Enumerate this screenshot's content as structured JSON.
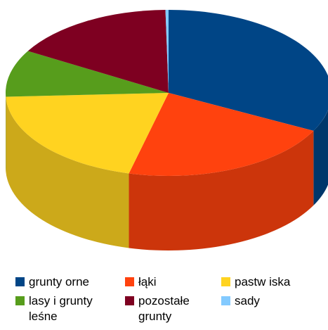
{
  "chart_data": {
    "type": "pie",
    "style": "3d",
    "categories": [
      "grunty orne",
      "łąki",
      "pastw iska",
      "lasy i grunty\nleśne",
      "pozostałe\ngrunty",
      "sady"
    ],
    "values": [
      32,
      21,
      20,
      9,
      16,
      0.3
    ],
    "colors": [
      "#004586",
      "#ff420e",
      "#ffd320",
      "#579d1c",
      "#7e0021",
      "#83caff"
    ],
    "legend_position": "bottom"
  }
}
